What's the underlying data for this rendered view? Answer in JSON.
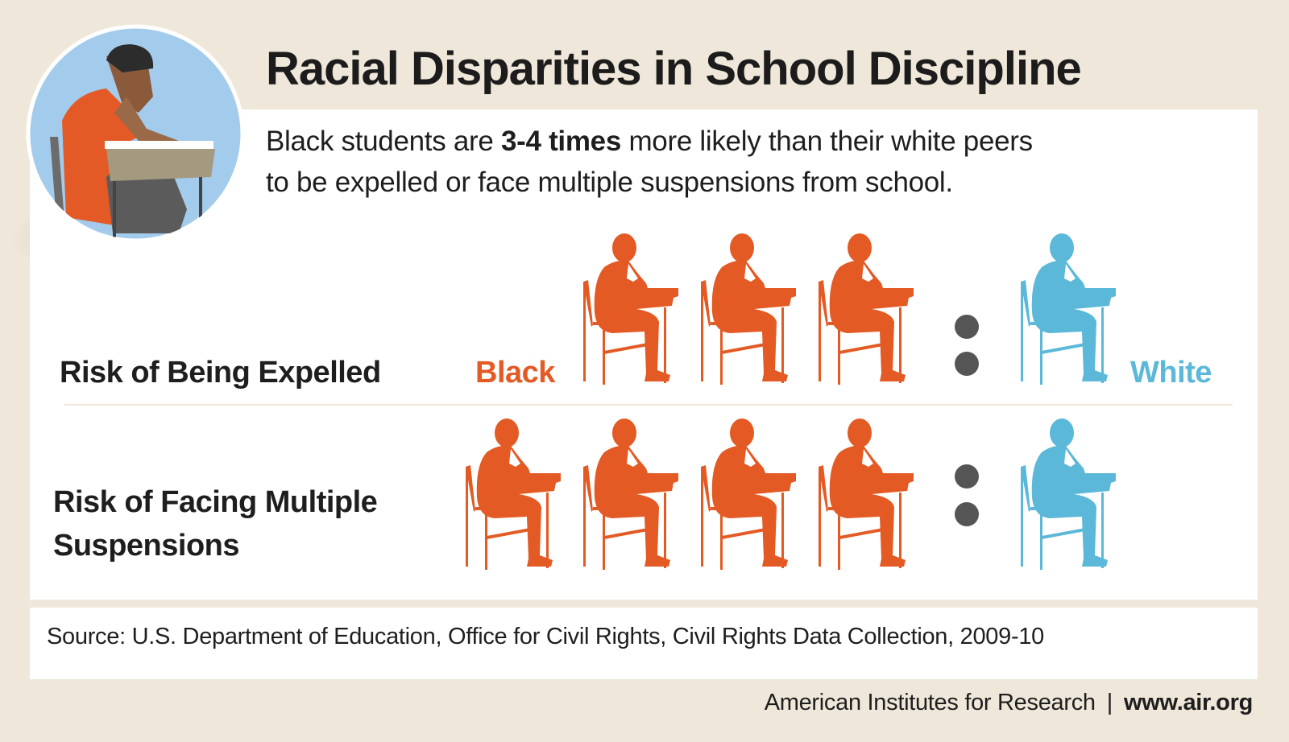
{
  "title": "Racial Disparities in School Discipline",
  "subtitle": {
    "before": "Black students are ",
    "emphasis": "3-4 times",
    "after": " more likely than their white peers",
    "line2": "to be expelled or face multiple suspensions from school."
  },
  "rows": [
    {
      "label_line1": "Risk of Being Expelled",
      "black_count": 3,
      "white_count": 1
    },
    {
      "label_line1": "Risk of Facing Multiple",
      "label_line2": "Suspensions",
      "black_count": 4,
      "white_count": 1
    }
  ],
  "legend": {
    "black": "Black",
    "white": "White"
  },
  "source": "Source: U.S. Department of Education, Office for Civil Rights, Civil Rights Data Collection, 2009-10",
  "footer": {
    "org": "American Institutes for Research",
    "separator": "|",
    "url": "www.air.org"
  },
  "colors": {
    "black": "#e35a24",
    "white": "#5bb8d8",
    "background": "#efe8da",
    "colon": "#555555"
  },
  "icons": {
    "figure": "student-at-desk-icon",
    "avatar": "student-illustration"
  }
}
